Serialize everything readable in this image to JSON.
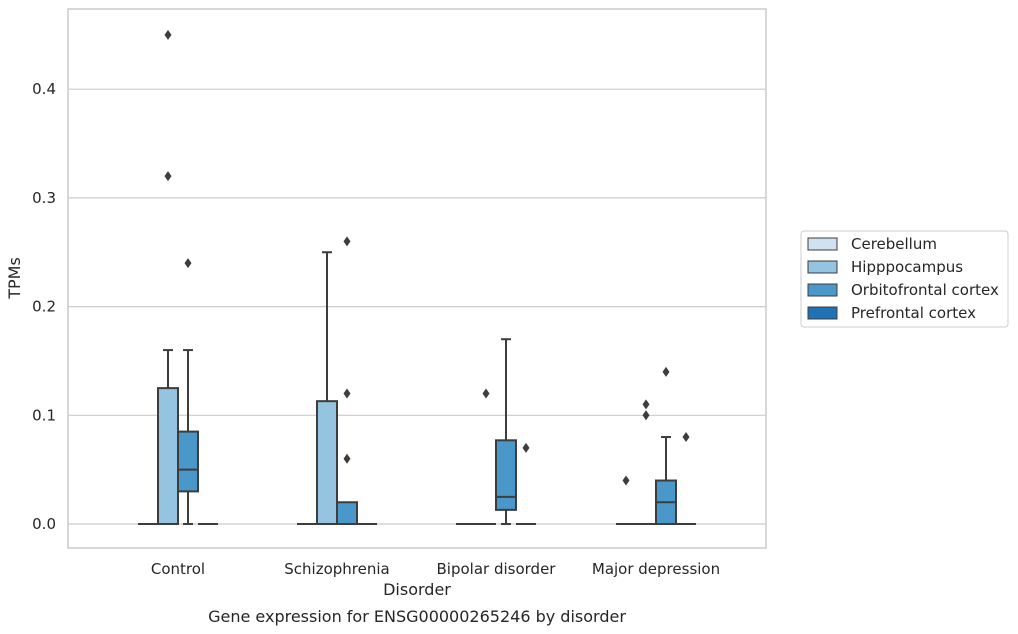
{
  "chart_data": {
    "type": "boxplot",
    "title": "Gene expression for ENSG00000265246 by disorder",
    "xlabel": "Disorder",
    "ylabel": "TPMs",
    "ylim": [
      -0.022,
      0.475
    ],
    "yticks": [
      0.0,
      0.1,
      0.2,
      0.3,
      0.4
    ],
    "ytick_labels": [
      "0.0",
      "0.1",
      "0.2",
      "0.3",
      "0.4"
    ],
    "grid": "horizontal",
    "legend_position": "right",
    "categories": [
      "Control",
      "Schizophrenia",
      "Bipolar disorder",
      "Major depression"
    ],
    "series": [
      {
        "name": "Cerebellum",
        "color": "#d0e1f2",
        "boxes": [
          {
            "q1": 0,
            "median": 0,
            "q3": 0,
            "whisker_low": 0,
            "whisker_high": 0,
            "outliers": []
          },
          {
            "q1": 0,
            "median": 0,
            "q3": 0,
            "whisker_low": 0,
            "whisker_high": 0,
            "outliers": []
          },
          {
            "q1": 0,
            "median": 0,
            "q3": 0,
            "whisker_low": 0,
            "whisker_high": 0,
            "outliers": []
          },
          {
            "q1": 0,
            "median": 0,
            "q3": 0,
            "whisker_low": 0,
            "whisker_high": 0,
            "outliers": [
              0.04
            ]
          }
        ]
      },
      {
        "name": "Hipppocampus",
        "color": "#94c4df",
        "boxes": [
          {
            "q1": 0,
            "median": 0,
            "q3": 0.125,
            "whisker_low": 0,
            "whisker_high": 0.16,
            "outliers": [
              0.32,
              0.45
            ]
          },
          {
            "q1": 0,
            "median": 0,
            "q3": 0.113,
            "whisker_low": 0,
            "whisker_high": 0.25,
            "outliers": []
          },
          {
            "q1": 0,
            "median": 0,
            "q3": 0,
            "whisker_low": 0,
            "whisker_high": 0,
            "outliers": [
              0.12
            ]
          },
          {
            "q1": 0,
            "median": 0,
            "q3": 0,
            "whisker_low": 0,
            "whisker_high": 0,
            "outliers": [
              0.1,
              0.11
            ]
          }
        ]
      },
      {
        "name": "Orbitofrontal cortex",
        "color": "#4a98c9",
        "boxes": [
          {
            "q1": 0.03,
            "median": 0.05,
            "q3": 0.085,
            "whisker_low": 0,
            "whisker_high": 0.16,
            "outliers": [
              0.24
            ]
          },
          {
            "q1": 0,
            "median": 0,
            "q3": 0.02,
            "whisker_low": 0,
            "whisker_high": 0.02,
            "outliers": [
              0.06,
              0.12,
              0.26
            ]
          },
          {
            "q1": 0.013,
            "median": 0.025,
            "q3": 0.077,
            "whisker_low": 0,
            "whisker_high": 0.17,
            "outliers": []
          },
          {
            "q1": 0,
            "median": 0.02,
            "q3": 0.04,
            "whisker_low": 0,
            "whisker_high": 0.08,
            "outliers": [
              0.14
            ]
          }
        ]
      },
      {
        "name": "Prefrontal cortex",
        "color": "#2171b5",
        "boxes": [
          {
            "q1": 0,
            "median": 0,
            "q3": 0,
            "whisker_low": 0,
            "whisker_high": 0,
            "outliers": []
          },
          {
            "q1": 0,
            "median": 0,
            "q3": 0,
            "whisker_low": 0,
            "whisker_high": 0,
            "outliers": []
          },
          {
            "q1": 0,
            "median": 0,
            "q3": 0,
            "whisker_low": 0,
            "whisker_high": 0,
            "outliers": [
              0.07
            ]
          },
          {
            "q1": 0,
            "median": 0,
            "q3": 0,
            "whisker_low": 0,
            "whisker_high": 0,
            "outliers": [
              0.08
            ]
          }
        ]
      }
    ]
  }
}
